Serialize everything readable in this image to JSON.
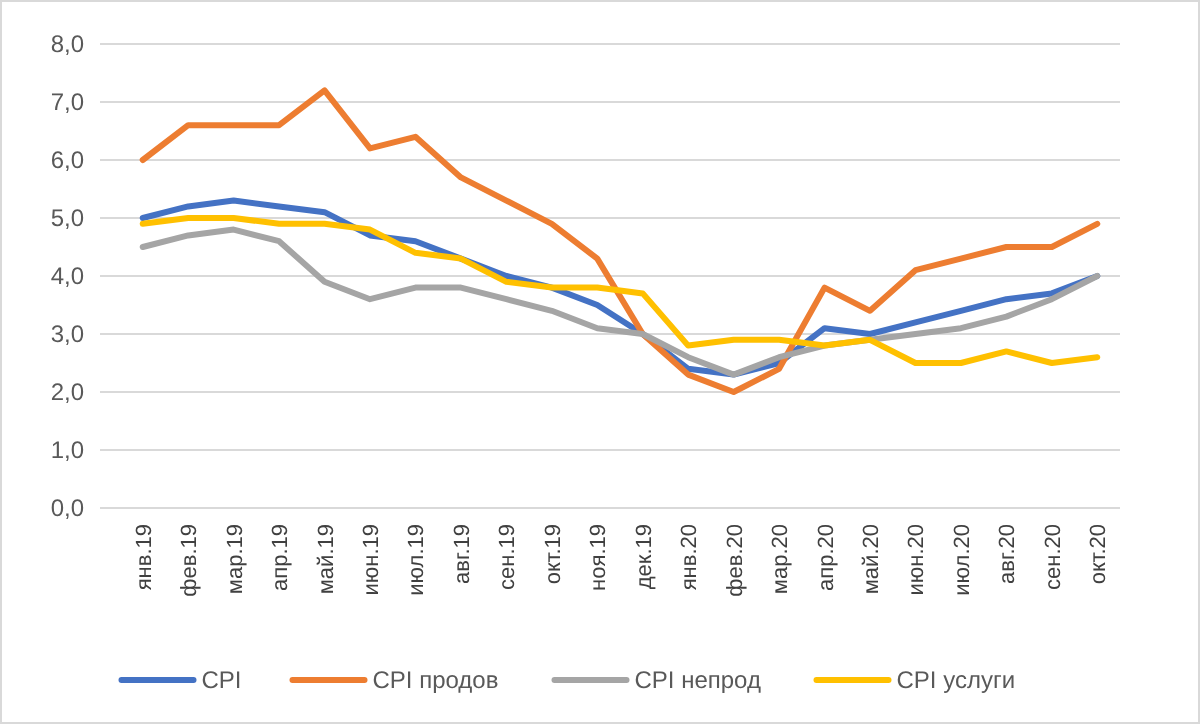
{
  "chart_data": {
    "type": "line",
    "categories": [
      "янв.19",
      "фев.19",
      "мар.19",
      "апр.19",
      "май.19",
      "июн.19",
      "июл.19",
      "авг.19",
      "сен.19",
      "окт.19",
      "ноя.19",
      "дек.19",
      "янв.20",
      "фев.20",
      "мар.20",
      "апр.20",
      "май.20",
      "июн.20",
      "июл.20",
      "авг.20",
      "сен.20",
      "окт.20"
    ],
    "series": [
      {
        "name": "CPI",
        "color": "#4472c4",
        "values": [
          5.0,
          5.2,
          5.3,
          5.2,
          5.1,
          4.7,
          4.6,
          4.3,
          4.0,
          3.8,
          3.5,
          3.0,
          2.4,
          2.3,
          2.5,
          3.1,
          3.0,
          3.2,
          3.4,
          3.6,
          3.7,
          4.0
        ]
      },
      {
        "name": "CPI продов",
        "color": "#ed7d31",
        "values": [
          6.0,
          6.6,
          6.6,
          6.6,
          7.2,
          6.2,
          6.4,
          5.7,
          5.3,
          4.9,
          4.3,
          3.0,
          2.3,
          2.0,
          2.4,
          3.8,
          3.4,
          4.1,
          4.3,
          4.5,
          4.5,
          4.9
        ]
      },
      {
        "name": "CPI непрод",
        "color": "#a5a5a5",
        "values": [
          4.5,
          4.7,
          4.8,
          4.6,
          3.9,
          3.6,
          3.8,
          3.8,
          3.6,
          3.4,
          3.1,
          3.0,
          2.6,
          2.3,
          2.6,
          2.8,
          2.9,
          3.0,
          3.1,
          3.3,
          3.6,
          4.0
        ]
      },
      {
        "name": "CPI услуги",
        "color": "#ffc000",
        "values": [
          4.9,
          5.0,
          5.0,
          4.9,
          4.9,
          4.8,
          4.4,
          4.3,
          3.9,
          3.8,
          3.8,
          3.7,
          2.8,
          2.9,
          2.9,
          2.8,
          2.9,
          2.5,
          2.5,
          2.7,
          2.5,
          2.6
        ]
      }
    ],
    "ylim": [
      0,
      8
    ],
    "yticks": [
      {
        "value": 0,
        "label": "0,0"
      },
      {
        "value": 1,
        "label": "1,0"
      },
      {
        "value": 2,
        "label": "2,0"
      },
      {
        "value": 3,
        "label": "3,0"
      },
      {
        "value": 4,
        "label": "4,0"
      },
      {
        "value": 5,
        "label": "5,0"
      },
      {
        "value": 6,
        "label": "6,0"
      },
      {
        "value": 7,
        "label": "7,0"
      },
      {
        "value": 8,
        "label": "8,0"
      }
    ],
    "grid": "y",
    "legend": "bottom",
    "line_style": "solid",
    "marker": "none"
  }
}
